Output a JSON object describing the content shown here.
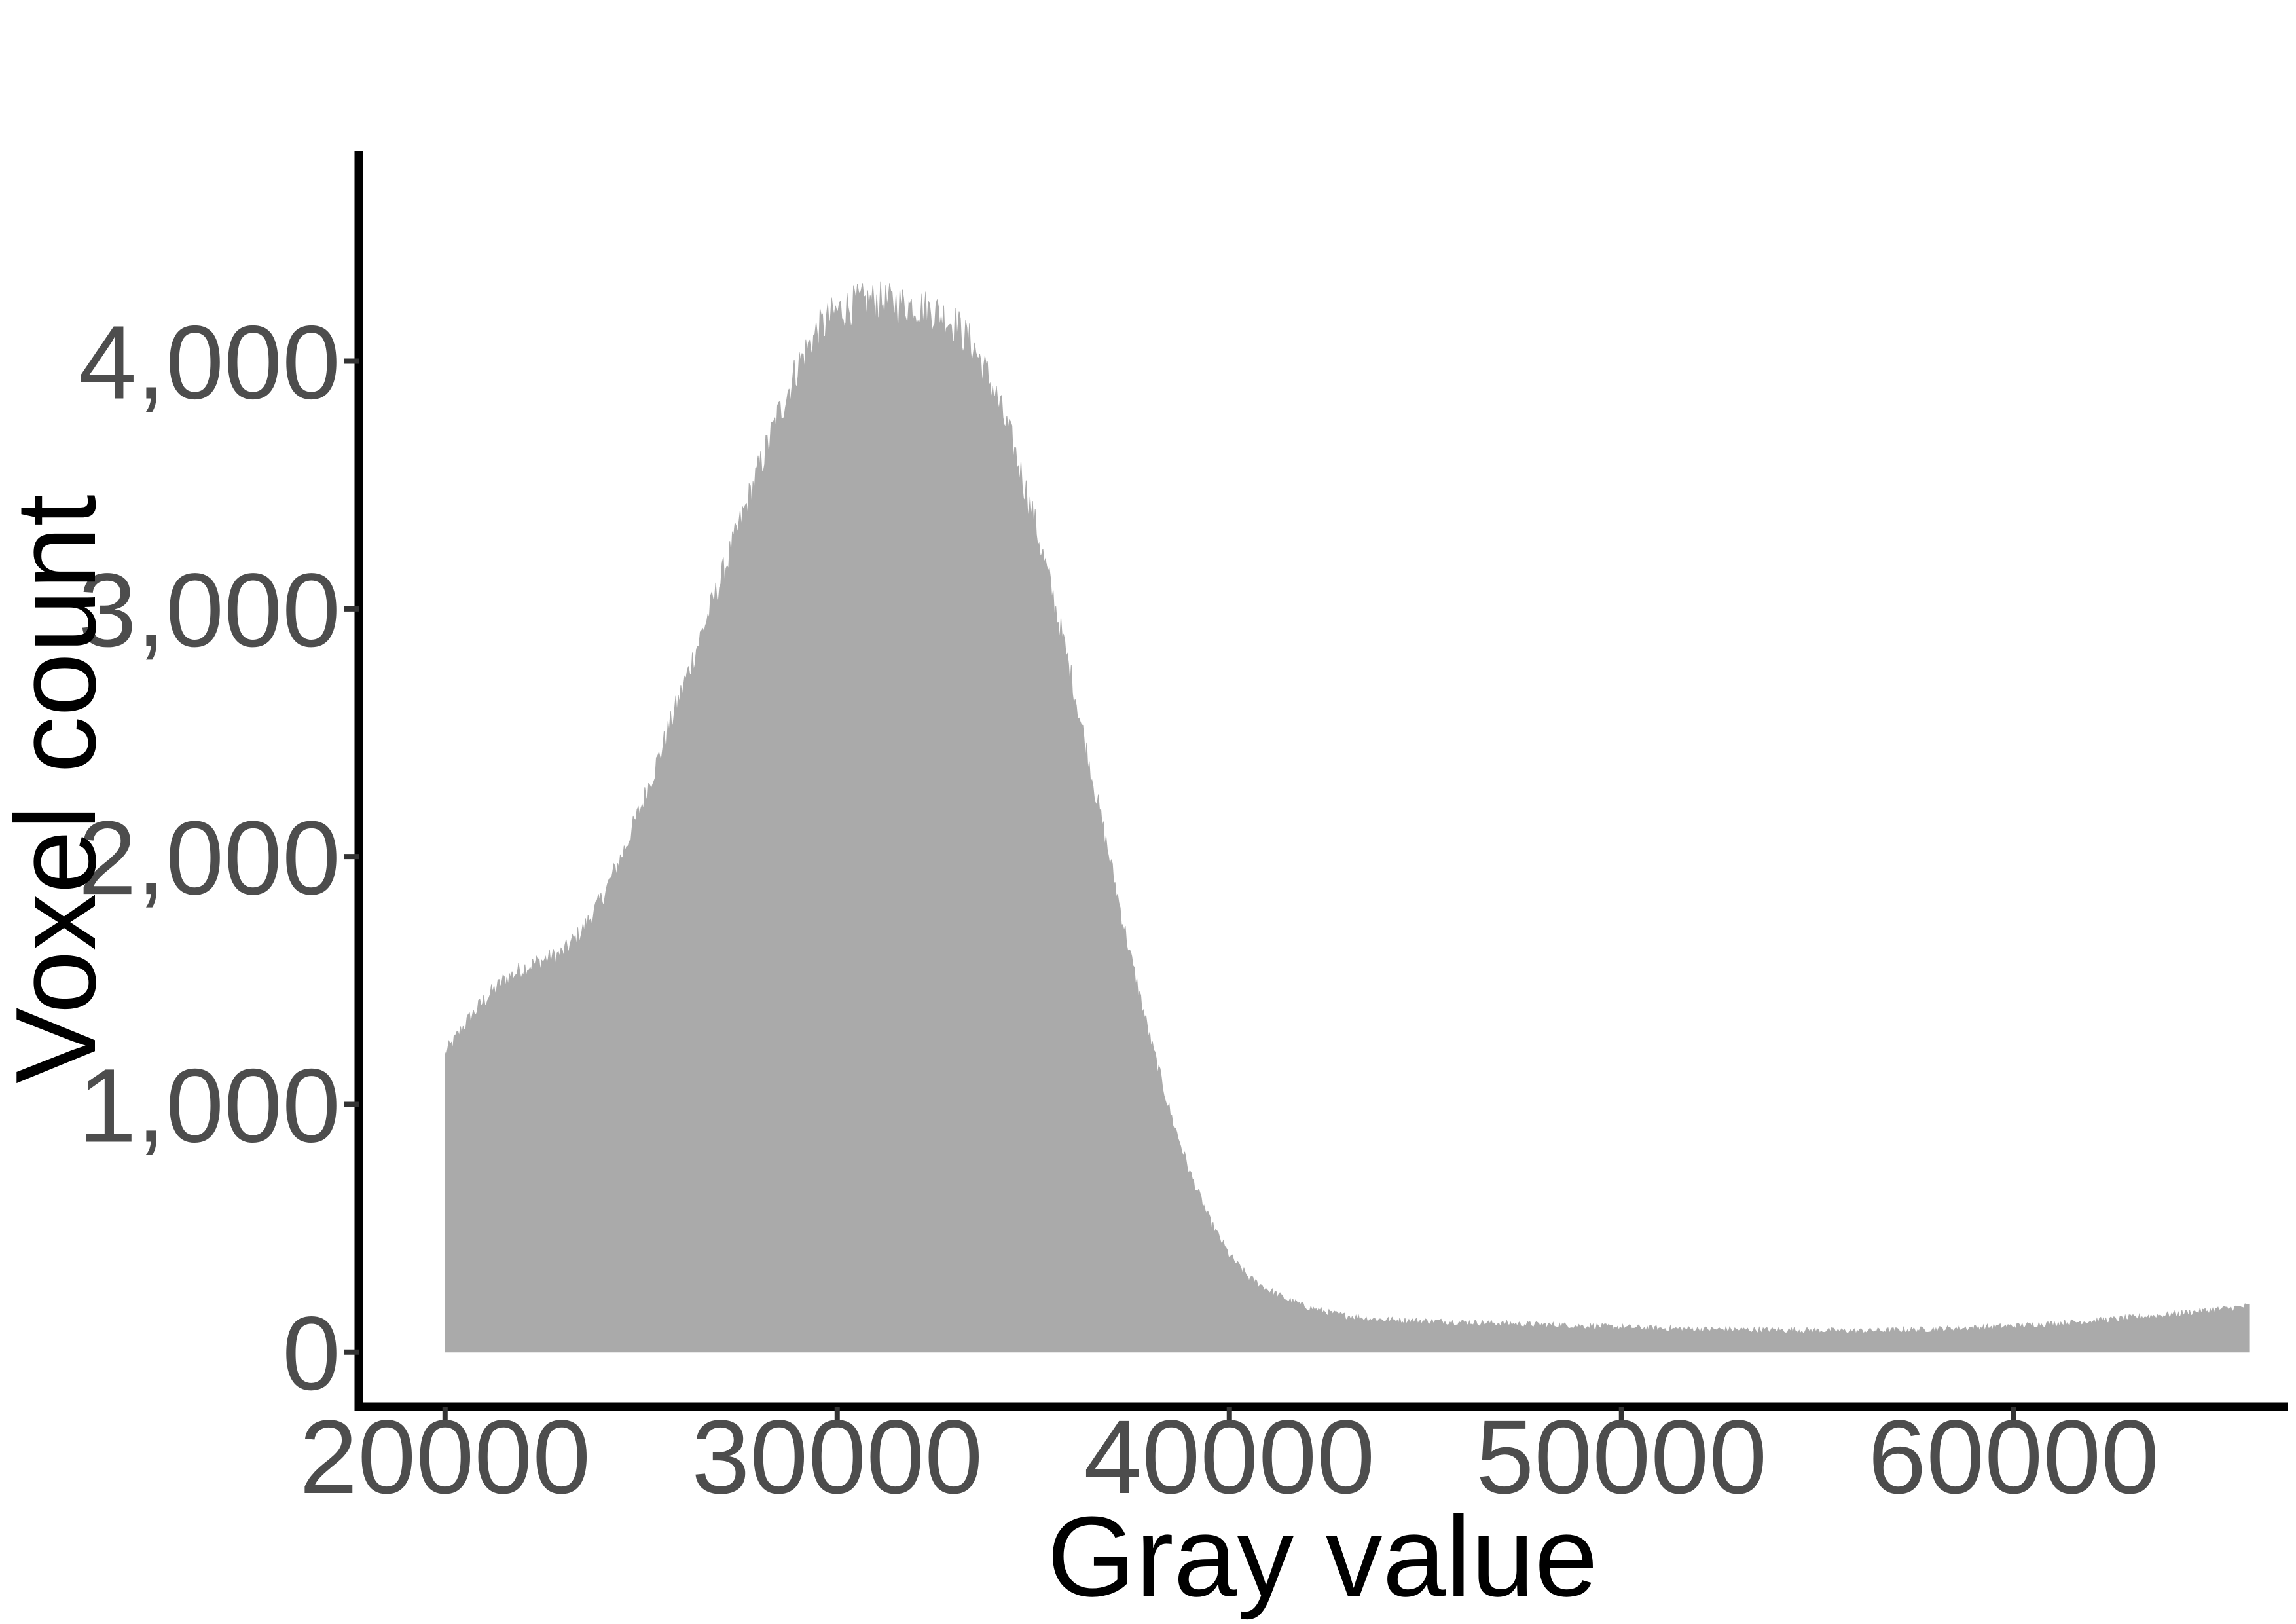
{
  "chart_data": {
    "type": "area",
    "title": "",
    "xlabel": "Gray value",
    "ylabel": "Voxel count",
    "xlim": [
      17800,
      67000
    ],
    "ylim": [
      -220,
      4850
    ],
    "x_ticks": [
      20000,
      30000,
      40000,
      50000,
      60000
    ],
    "x_tick_labels": [
      "20000",
      "30000",
      "40000",
      "50000",
      "60000"
    ],
    "y_ticks": [
      0,
      1000,
      2000,
      3000,
      4000
    ],
    "y_tick_labels": [
      "0",
      "1,000",
      "2,000",
      "3,000",
      "4,000"
    ],
    "grid": false,
    "legend": "none",
    "fill_color": "#aaaaaa",
    "axis_color": "#000000",
    "series": [
      {
        "x": [
          20000,
          20500,
          21000,
          21500,
          22000,
          22500,
          23000,
          23500,
          24000,
          24500,
          25000,
          25500,
          26000,
          26500,
          27000,
          27500,
          28000,
          28500,
          29000,
          29500,
          30000,
          30500,
          31000,
          31500,
          32000,
          32500,
          33000,
          33500,
          34000,
          34500,
          35000,
          35500,
          36000,
          36500,
          37000,
          37500,
          38000,
          38500,
          39000,
          39500,
          40000,
          40500,
          41000,
          41500,
          42000,
          42500,
          43000,
          43500,
          44000,
          45000,
          46000,
          47000,
          48000,
          49000,
          50000,
          51000,
          52000,
          53000,
          54000,
          55000,
          56000,
          57000,
          58000,
          59000,
          60000,
          61000,
          62000,
          63000,
          64000,
          65000,
          66000
        ],
        "values": [
          1200,
          1320,
          1420,
          1500,
          1550,
          1580,
          1610,
          1700,
          1830,
          2000,
          2200,
          2420,
          2650,
          2880,
          3100,
          3330,
          3560,
          3780,
          3980,
          4120,
          4200,
          4230,
          4240,
          4230,
          4220,
          4200,
          4150,
          4050,
          3880,
          3650,
          3370,
          3050,
          2700,
          2320,
          1950,
          1580,
          1250,
          960,
          720,
          530,
          390,
          300,
          250,
          210,
          180,
          160,
          145,
          135,
          130,
          125,
          120,
          115,
          110,
          105,
          100,
          95,
          92,
          90,
          88,
          87,
          85,
          88,
          92,
          98,
          105,
          115,
          125,
          138,
          152,
          168,
          185
        ]
      }
    ]
  }
}
